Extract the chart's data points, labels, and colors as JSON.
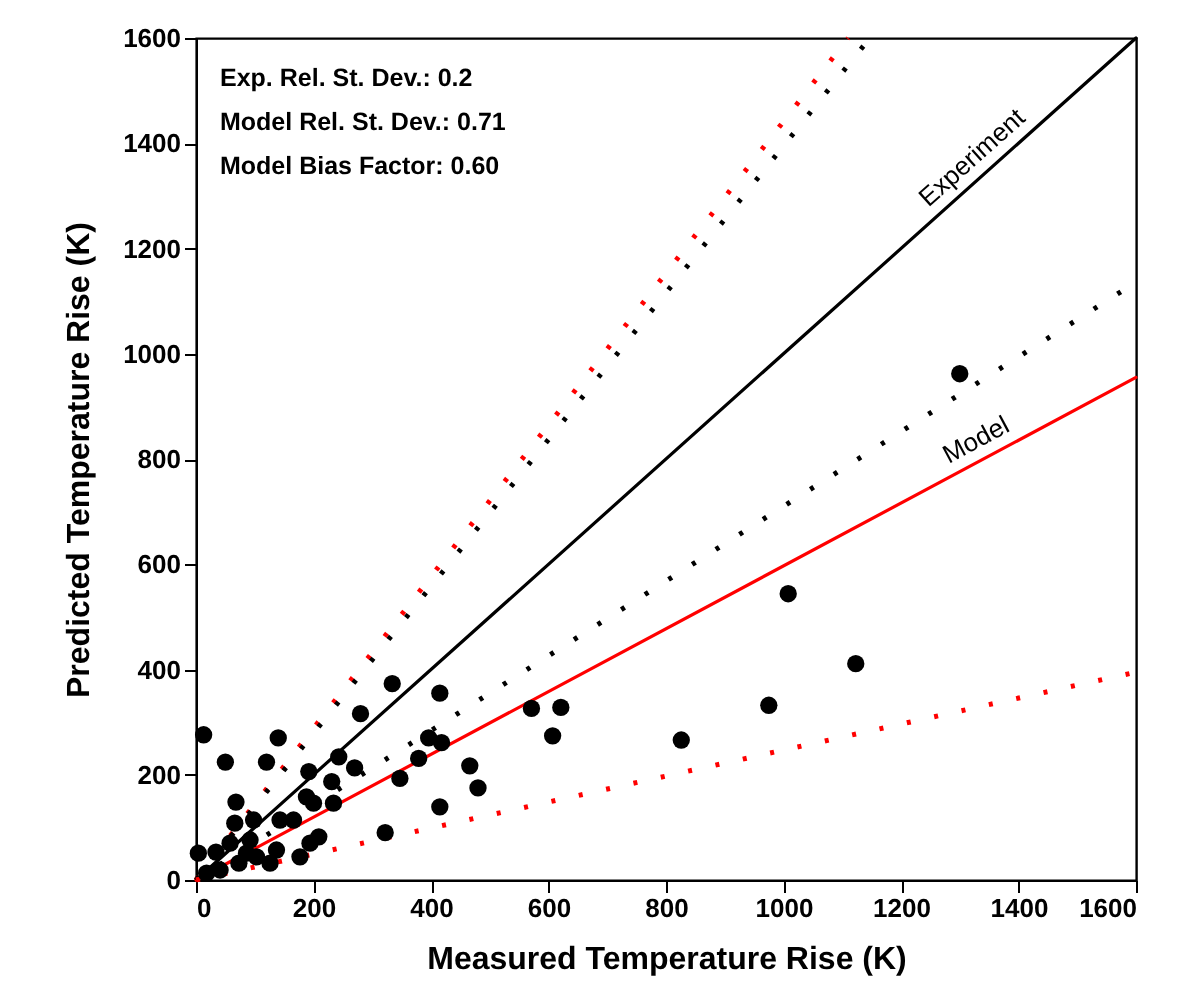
{
  "chart_data": {
    "type": "scatter",
    "xlabel": "Measured Temperature Rise (K)",
    "ylabel": "Predicted Temperature Rise (K)",
    "xlim": [
      0,
      1600
    ],
    "ylim": [
      0,
      1600
    ],
    "xticks": [
      0,
      200,
      400,
      600,
      800,
      1000,
      1200,
      1400,
      1600
    ],
    "yticks": [
      0,
      200,
      400,
      600,
      800,
      1000,
      1200,
      1400,
      1600
    ],
    "grid": false,
    "annotations": [
      "Exp. Rel. St. Dev.: 0.2",
      "Model Rel. St. Dev.: 0.71",
      "Model Bias Factor: 0.60"
    ],
    "series": [
      {
        "color": "#000000",
        "marker": "circle",
        "x": [
          13,
          50,
          120,
          140,
          334,
          415,
          280,
          243,
          270,
          231,
          192,
          68,
          66,
          188,
          234,
          209,
          322,
          396,
          418,
          347,
          379,
          466,
          480,
          415,
          571,
          621,
          607,
          826,
          975,
          1123,
          1008,
          1300,
          4,
          34,
          98,
          92,
          143,
          166,
          137,
          126,
          177,
          73,
          41,
          18,
          103,
          58,
          194,
          200,
          86
        ],
        "values": [
          276,
          224,
          224,
          270,
          373,
          355,
          316,
          234,
          213,
          187,
          206,
          148,
          108,
          158,
          146,
          82,
          90,
          270,
          261,
          193,
          231,
          217,
          175,
          139,
          326,
          328,
          274,
          266,
          332,
          411,
          544,
          962,
          51,
          53,
          114,
          76,
          114,
          114,
          57,
          32,
          44,
          32,
          19,
          13,
          44,
          70,
          70,
          146,
          51
        ]
      },
      {
        "type": "line",
        "name": "Experiment",
        "color": "#000000",
        "line_style": "solid",
        "x": [
          0,
          1600
        ],
        "values": [
          0,
          1600
        ]
      },
      {
        "type": "line",
        "name": "Model",
        "color": "#ff0000",
        "line_style": "solid",
        "x": [
          0,
          1600
        ],
        "values": [
          0,
          955
        ]
      },
      {
        "type": "line",
        "color": "#ff0000",
        "line_style": "dotted",
        "x": [
          0,
          1110
        ],
        "values": [
          0,
          1600
        ]
      },
      {
        "type": "line",
        "color": "#000000",
        "line_style": "dotted",
        "x": [
          0,
          1147
        ],
        "values": [
          0,
          1600
        ]
      },
      {
        "type": "line",
        "color": "#000000",
        "line_style": "dotted",
        "x": [
          0,
          1600
        ],
        "values": [
          0,
          1136
        ]
      },
      {
        "type": "line",
        "color": "#ff0000",
        "line_style": "dotted",
        "x": [
          0,
          1600
        ],
        "values": [
          0,
          395
        ]
      }
    ]
  }
}
